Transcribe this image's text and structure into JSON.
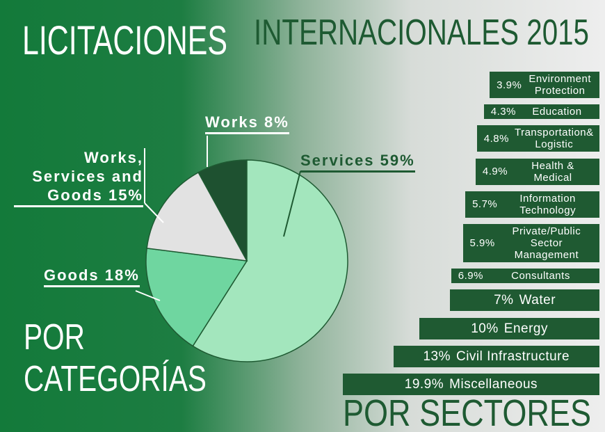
{
  "header": {
    "title": "LICITACIONES",
    "subtitle": "INTERNACIONALES 2015"
  },
  "chart_data": [
    {
      "type": "pie",
      "title": "POR CATEGORÍAS",
      "categories": [
        "Works",
        "Services",
        "Goods",
        "Works, Services and Goods"
      ],
      "values": [
        8,
        59,
        18,
        15
      ],
      "value_labels": [
        "8%",
        "59%",
        "18%",
        "15%"
      ],
      "colors": [
        "#1e5130",
        "#a3e6bd",
        "#6fd6a0",
        "#e2e2e2"
      ]
    },
    {
      "type": "bar",
      "orientation": "horizontal",
      "title": "POR SECTORES",
      "categories": [
        "Environment Protection",
        "Education",
        "Transportation& Logistic",
        "Health & Medical",
        "Information Technology",
        "Private/Public Sector Management",
        "Consultants",
        "Water",
        "Energy",
        "Civil Infrastructure",
        "Miscellaneous"
      ],
      "values": [
        3.9,
        4.3,
        4.8,
        4.9,
        5.7,
        5.9,
        6.9,
        7,
        10,
        13,
        19.9
      ],
      "value_labels": [
        "3.9%",
        "4.3%",
        "4.8%",
        "4.9%",
        "5.7%",
        "5.9%",
        "6.9%",
        "7%",
        "10%",
        "13%",
        "19.9%"
      ],
      "color": "#1f5a32"
    }
  ]
}
